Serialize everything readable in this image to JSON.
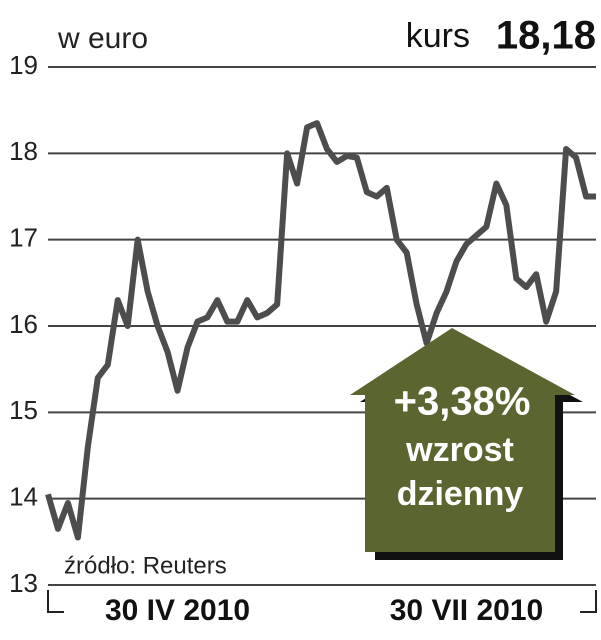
{
  "chart_data": {
    "type": "line",
    "unit_label": "w euro",
    "price_caption": "kurs",
    "price": "18,18",
    "source": "źródło: Reuters",
    "annotation": {
      "change": "+3,38%",
      "line1": "wzrost",
      "line2": "dzienny"
    },
    "categories": [
      null,
      null,
      null,
      null,
      null,
      null,
      null,
      null,
      null,
      null,
      null,
      null,
      null,
      "30 IV 2010",
      null,
      null,
      null,
      null,
      null,
      null,
      null,
      null,
      null,
      null,
      null,
      null,
      null,
      null,
      null,
      null,
      null,
      null,
      null,
      null,
      null,
      null,
      null,
      null,
      null,
      null,
      null,
      null,
      "30 VII 2010",
      null,
      null,
      null,
      null,
      null,
      null,
      null,
      null,
      null,
      null,
      null,
      null,
      null
    ],
    "series": [
      {
        "name": "kurs",
        "color": "#4d4d4d",
        "values": [
          14.05,
          13.65,
          13.95,
          13.55,
          14.6,
          15.4,
          15.55,
          16.3,
          16.0,
          17.0,
          16.4,
          16.0,
          15.7,
          15.25,
          15.75,
          16.05,
          16.1,
          16.3,
          16.05,
          16.05,
          16.3,
          16.1,
          16.15,
          16.25,
          18.0,
          17.65,
          18.3,
          18.35,
          18.05,
          17.9,
          17.97,
          17.95,
          17.55,
          17.5,
          17.6,
          17.0,
          16.85,
          16.25,
          15.8,
          16.15,
          16.4,
          16.75,
          16.95,
          17.05,
          17.15,
          17.65,
          17.4,
          16.55,
          16.45,
          16.6,
          16.05,
          16.4,
          18.05,
          17.95,
          17.5,
          17.5
        ]
      }
    ],
    "ylim": [
      13,
      19
    ],
    "yticks": [
      13,
      14,
      15,
      16,
      17,
      18,
      19
    ],
    "grid": true
  }
}
